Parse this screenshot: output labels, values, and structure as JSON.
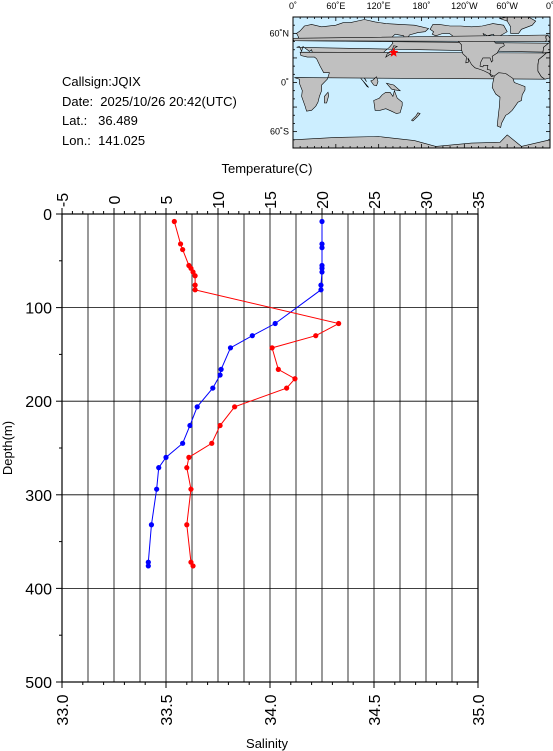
{
  "info": {
    "callsign": "Callsign:JQIX",
    "date": "Date:  2025/10/26 20:42(UTC)",
    "lat": "Lat.:   36.489",
    "lon": "Lon.:  141.025"
  },
  "map": {
    "lon_labels": [
      "0˚",
      "60˚E",
      "120˚E",
      "180˚",
      "120˚W",
      "60˚W",
      "0˚"
    ],
    "lat_labels": [
      "60˚N",
      "0˚",
      "60˚S"
    ],
    "station": {
      "lat": 36.489,
      "lon": 141.025
    },
    "ocean_color": "#cceeff",
    "land_color": "#c0c0c0",
    "marker_color": "#ff0000"
  },
  "chart_data": {
    "type": "line",
    "top_axis": {
      "label": "Temperature(C)",
      "range": [
        -5,
        35
      ],
      "ticks": [
        "-5",
        "0",
        "5",
        "10",
        "15",
        "20",
        "25",
        "30",
        "35"
      ]
    },
    "bottom_axis": {
      "label": "Salinity",
      "range": [
        33.0,
        35.0
      ],
      "ticks": [
        "33.0",
        "33.5",
        "34.0",
        "34.5",
        "35.0"
      ]
    },
    "y_axis": {
      "label": "Depth(m)",
      "range": [
        0,
        500
      ],
      "inverted": true,
      "ticks": [
        "0",
        "100",
        "200",
        "300",
        "400",
        "500"
      ]
    },
    "grid": true,
    "series": [
      {
        "axis": "temperature",
        "color": "#0000ff",
        "points": [
          [
            20.0,
            8
          ],
          [
            20.0,
            32
          ],
          [
            20.0,
            36
          ],
          [
            20.0,
            55
          ],
          [
            20.0,
            58
          ],
          [
            20.0,
            62
          ],
          [
            19.9,
            76
          ],
          [
            19.9,
            81
          ],
          [
            15.5,
            117
          ],
          [
            13.3,
            130
          ],
          [
            11.2,
            143
          ],
          [
            10.3,
            166
          ],
          [
            10.2,
            172
          ],
          [
            9.5,
            186
          ],
          [
            8.0,
            206
          ],
          [
            7.3,
            226
          ],
          [
            6.6,
            245
          ],
          [
            5.0,
            260
          ],
          [
            4.3,
            271
          ],
          [
            4.1,
            294
          ],
          [
            3.6,
            332
          ],
          [
            3.3,
            372
          ],
          [
            3.3,
            376
          ]
        ]
      },
      {
        "axis": "salinity",
        "color": "#ff0000",
        "points": [
          [
            33.54,
            8
          ],
          [
            33.57,
            32
          ],
          [
            33.58,
            38
          ],
          [
            33.61,
            55
          ],
          [
            33.62,
            58
          ],
          [
            33.63,
            62
          ],
          [
            33.64,
            66
          ],
          [
            33.64,
            76
          ],
          [
            33.64,
            81
          ],
          [
            34.33,
            117
          ],
          [
            34.22,
            130
          ],
          [
            34.01,
            143
          ],
          [
            34.04,
            166
          ],
          [
            34.12,
            176
          ],
          [
            34.08,
            186
          ],
          [
            33.83,
            206
          ],
          [
            33.76,
            226
          ],
          [
            33.72,
            245
          ],
          [
            33.61,
            260
          ],
          [
            33.6,
            271
          ],
          [
            33.62,
            294
          ],
          [
            33.6,
            332
          ],
          [
            33.62,
            372
          ],
          [
            33.63,
            376
          ]
        ]
      }
    ]
  }
}
